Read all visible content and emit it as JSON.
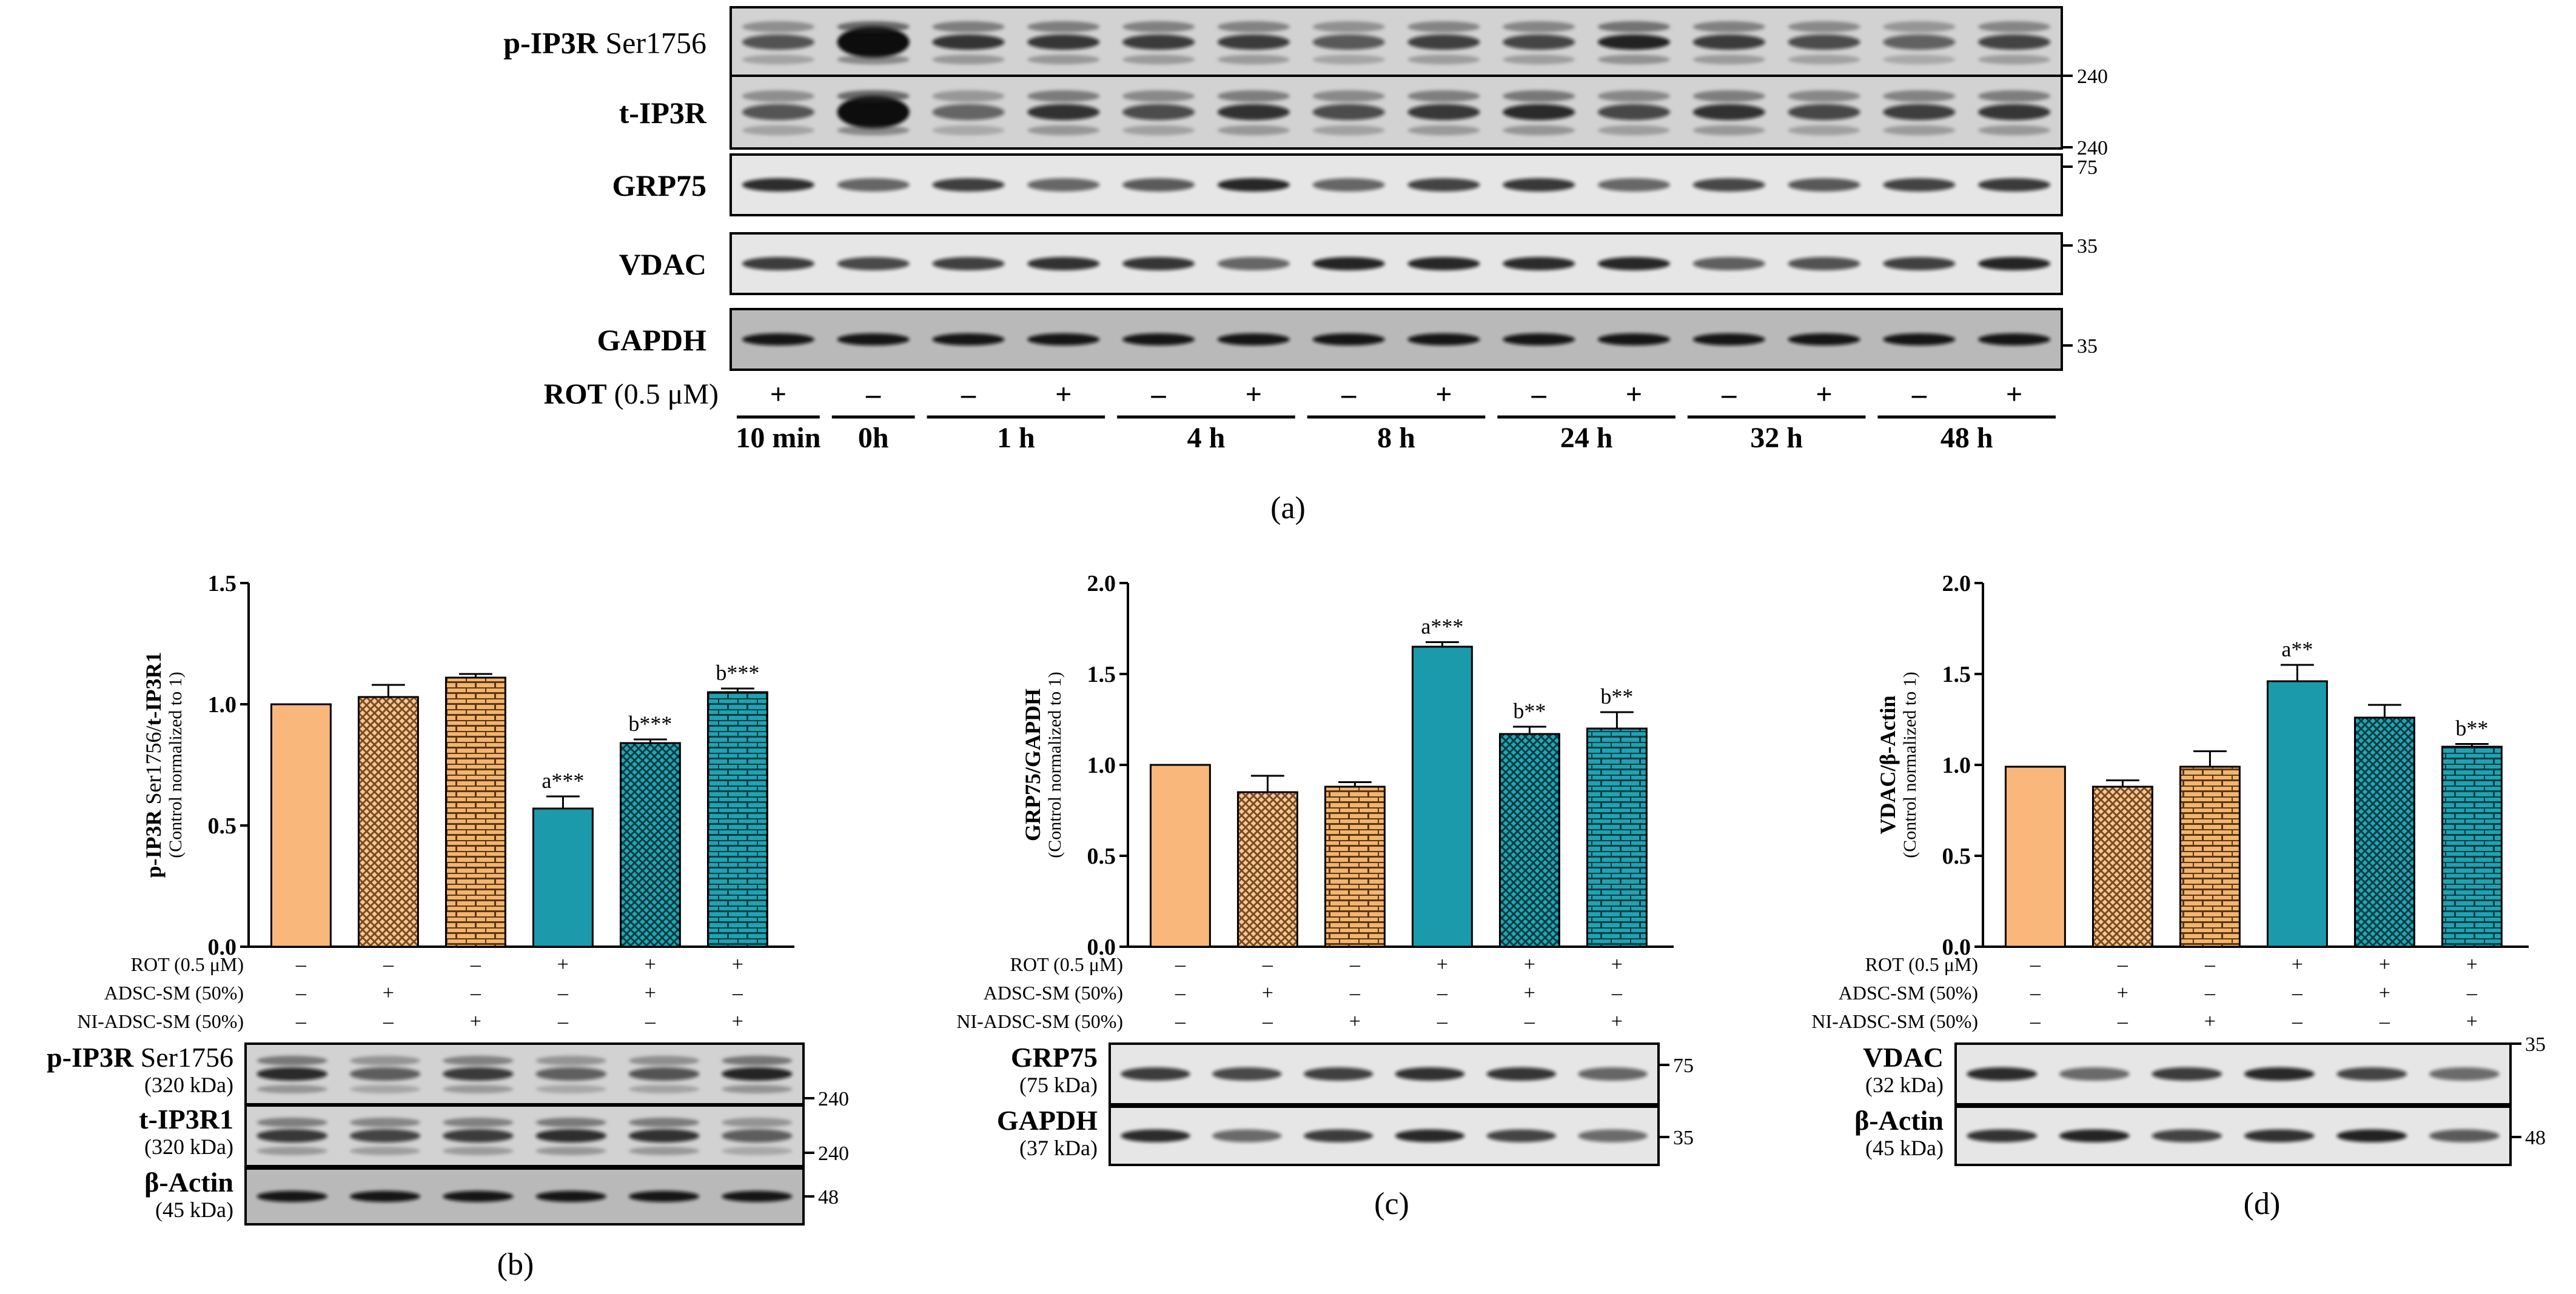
{
  "panel_a": {
    "caption": "(a)",
    "rows": [
      {
        "id": "pip3r",
        "label_bold": "p-IP3R",
        "label_rest": " Ser1756",
        "marker": "240",
        "style": "blot"
      },
      {
        "id": "tip3r",
        "label_bold": "t-IP3R",
        "label_rest": "",
        "marker": "240",
        "style": "blot"
      },
      {
        "id": "grp75",
        "label_bold": "GRP75",
        "label_rest": "",
        "marker": "75",
        "style": "band"
      },
      {
        "id": "vdac",
        "label_bold": "VDAC",
        "label_rest": "",
        "marker": "35",
        "style": "band"
      },
      {
        "id": "gapdh",
        "label_bold": "GAPDH",
        "label_rest": "",
        "marker": "35",
        "style": "dark"
      }
    ],
    "rot_label_bold": "ROT",
    "rot_label_rest": " (0.5 μM)",
    "signs": [
      "+",
      "–",
      "–",
      "+",
      "–",
      "+",
      "–",
      "+",
      "–",
      "+",
      "–",
      "+",
      "–",
      "+"
    ],
    "times": [
      "10 min",
      "0h",
      "1 h",
      "4 h",
      "8 h",
      "24 h",
      "32 h",
      "48 h"
    ]
  },
  "treatments": {
    "rot_label": "ROT (0.5 μM)",
    "adsc_label": "ADSC-SM (50%)",
    "ni_label": "NI-ADSC-SM (50%)",
    "rot": [
      "–",
      "–",
      "–",
      "+",
      "+",
      "+"
    ],
    "adsc": [
      "–",
      "+",
      "–",
      "–",
      "+",
      "–"
    ],
    "ni": [
      "–",
      "–",
      "+",
      "–",
      "–",
      "+"
    ]
  },
  "bar_colors": {
    "control": "#f9b77c",
    "orange_pattern": "#d9924e",
    "teal": "#1a9aaa",
    "teal_pattern": "#147e8c"
  },
  "panel_b": {
    "caption": "(b)",
    "ylabel_main": "p-IP3R Ser1756/t-IP3R1",
    "ylabel_sub": "(Control normalized to 1)",
    "ticks": [
      "0.0",
      "0.5",
      "1.0",
      "1.5"
    ],
    "blots": [
      {
        "name_bold": "p-IP3R",
        "name_rest": " Ser1756",
        "kda": "(320 kDa)",
        "marker": "240"
      },
      {
        "name_bold": "t-IP3R1",
        "name_rest": "",
        "kda": "(320 kDa)",
        "marker": "240"
      },
      {
        "name_bold": "β-Actin",
        "name_rest": "",
        "kda": "(45 kDa)",
        "marker": "48"
      }
    ]
  },
  "panel_c": {
    "caption": "(c)",
    "ylabel_main": "GRP75/GAPDH",
    "ylabel_sub": "(Control normalized to 1)",
    "ticks": [
      "0.0",
      "0.5",
      "1.0",
      "1.5",
      "2.0"
    ],
    "blots": [
      {
        "name_bold": "GRP75",
        "name_rest": "",
        "kda": "(75 kDa)",
        "marker": "75"
      },
      {
        "name_bold": "GAPDH",
        "name_rest": "",
        "kda": "(37 kDa)",
        "marker": "35"
      }
    ]
  },
  "panel_d": {
    "caption": "(d)",
    "ylabel_main": "VDAC/β-Actin",
    "ylabel_sub": "(Control normalized to 1)",
    "ticks": [
      "0.0",
      "0.5",
      "1.0",
      "1.5",
      "2.0"
    ],
    "blots": [
      {
        "name_bold": "VDAC",
        "name_rest": "",
        "kda": "(32 kDa)",
        "marker": "35"
      },
      {
        "name_bold": "β-Actin",
        "name_rest": "",
        "kda": "(45 kDa)",
        "marker": "48"
      }
    ]
  },
  "chart_data": [
    {
      "type": "bar",
      "ylabel": "p-IP3R Ser1756/t-IP3R1 (Control normalized to 1)",
      "ylim": [
        0,
        1.5
      ],
      "categories": [
        "1",
        "2",
        "3",
        "4",
        "5",
        "6"
      ],
      "values": [
        1.0,
        1.03,
        1.11,
        0.57,
        0.84,
        1.05
      ],
      "errors": [
        0,
        0.05,
        0.015,
        0.05,
        0.015,
        0.015
      ],
      "annotations": [
        "",
        "",
        "",
        "a***",
        "b***",
        "b***"
      ]
    },
    {
      "type": "bar",
      "ylabel": "GRP75/GAPDH (Control normalized to 1)",
      "ylim": [
        0,
        2.0
      ],
      "categories": [
        "1",
        "2",
        "3",
        "4",
        "5",
        "6"
      ],
      "values": [
        1.0,
        0.85,
        0.88,
        1.65,
        1.17,
        1.2
      ],
      "errors": [
        0,
        0.09,
        0.025,
        0.025,
        0.04,
        0.09
      ],
      "annotations": [
        "",
        "",
        "",
        "a***",
        "b**",
        "b**"
      ]
    },
    {
      "type": "bar",
      "ylabel": "VDAC/β-Actin (Control normalized to 1)",
      "ylim": [
        0,
        2.0
      ],
      "categories": [
        "1",
        "2",
        "3",
        "4",
        "5",
        "6"
      ],
      "values": [
        0.99,
        0.88,
        0.99,
        1.46,
        1.26,
        1.1
      ],
      "errors": [
        0,
        0.035,
        0.085,
        0.09,
        0.07,
        0.015
      ],
      "annotations": [
        "",
        "",
        "",
        "a**",
        "",
        "b**"
      ]
    }
  ]
}
